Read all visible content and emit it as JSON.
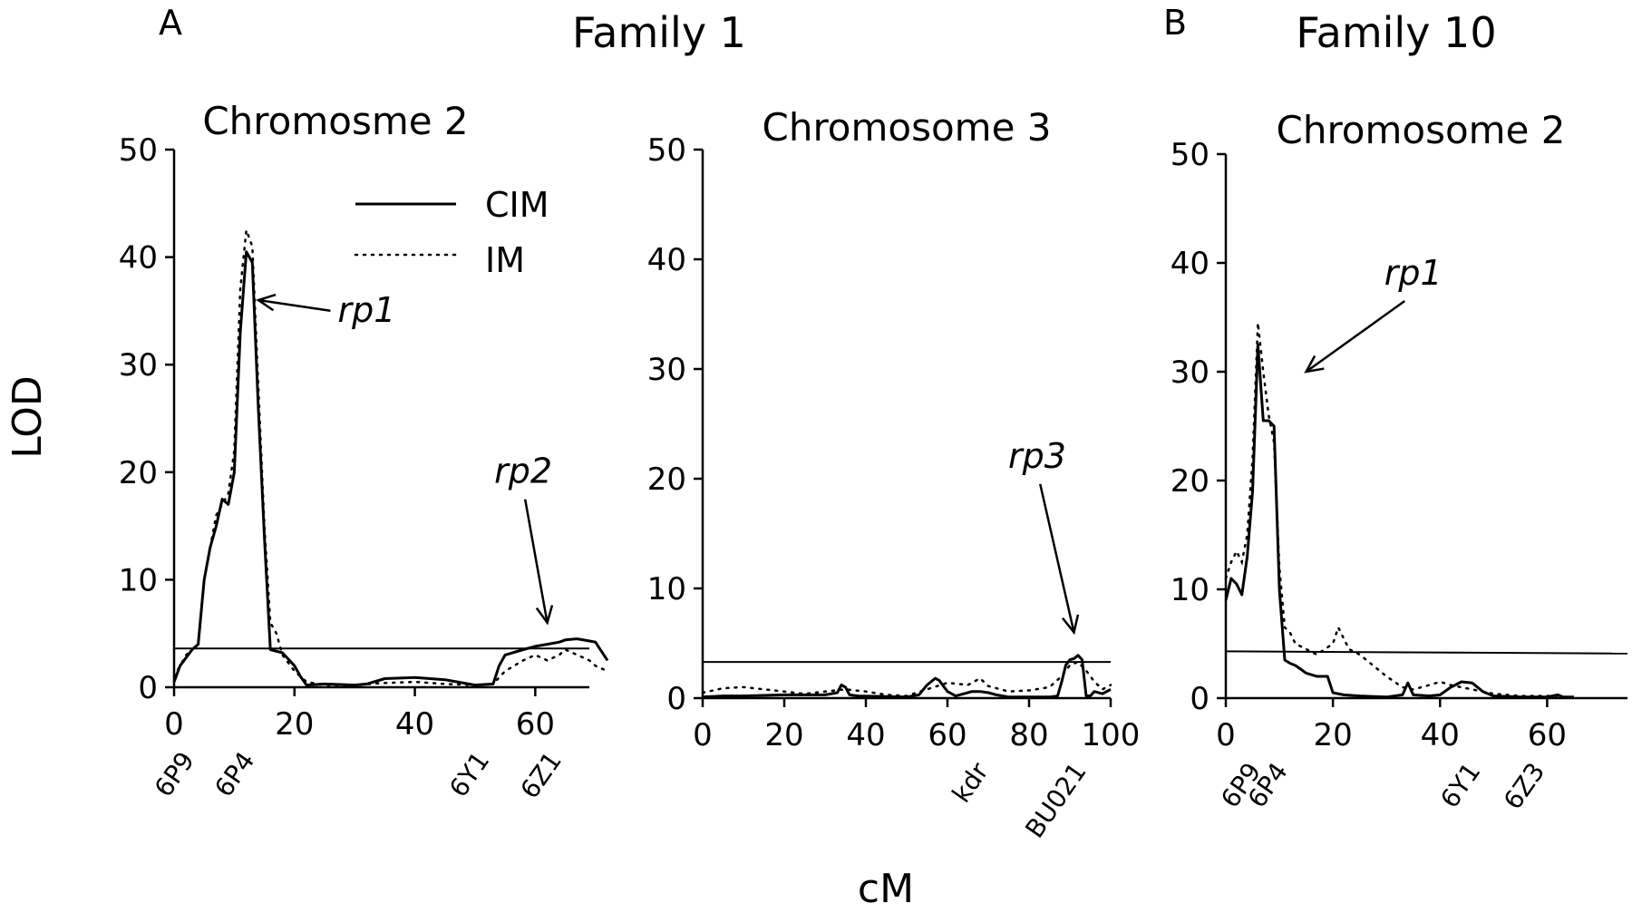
{
  "figure": {
    "panel_a_letter": "A",
    "panel_b_letter": "B",
    "family_a_title": "Family 1",
    "family_b_title": "Family 10",
    "ylabel": "LOD",
    "xlabel": "cM"
  },
  "legend": {
    "cim_label": "CIM",
    "im_label": "IM"
  },
  "chart_data": [
    {
      "type": "line",
      "title": "Chromosme 2",
      "ylim": [
        0,
        50
      ],
      "yticks": [
        0,
        10,
        20,
        30,
        40,
        50
      ],
      "xlim": [
        0,
        72
      ],
      "xticks": [
        0,
        20,
        40,
        60
      ],
      "threshold": 3.6,
      "markers": [
        {
          "name": "6P9",
          "x": 2
        },
        {
          "name": "6P4",
          "x": 12
        },
        {
          "name": "6Y1",
          "x": 51
        },
        {
          "name": "6Z1",
          "x": 63
        }
      ],
      "annotations": [
        {
          "text": "rp1",
          "x": 32,
          "y": 34,
          "arrow_to_x": 14,
          "arrow_to_y": 36
        },
        {
          "text": "rp2",
          "x": 58,
          "y": 19,
          "arrow_to_x": 62,
          "arrow_to_y": 6
        }
      ],
      "series": [
        {
          "name": "CIM",
          "x": [
            0,
            1,
            3,
            4,
            5,
            6,
            7,
            8,
            9,
            10,
            11,
            12,
            13,
            14,
            15,
            16,
            18,
            20,
            21,
            22,
            25,
            30,
            32,
            35,
            40,
            45,
            50,
            53,
            54,
            55,
            58,
            60,
            62,
            64,
            65,
            67,
            69,
            70,
            72
          ],
          "y": [
            0.5,
            2,
            3.5,
            4,
            10,
            13,
            15,
            17.5,
            17,
            20,
            33,
            40.5,
            39.5,
            26,
            14,
            3.5,
            3.2,
            2,
            1,
            0.2,
            0.3,
            0.2,
            0.3,
            0.8,
            0.9,
            0.7,
            0.2,
            0.3,
            2,
            3,
            3.5,
            3.8,
            4,
            4.2,
            4.4,
            4.5,
            4.3,
            4.2,
            2.5
          ]
        },
        {
          "name": "IM",
          "x": [
            0,
            2,
            4,
            5,
            7,
            9,
            10,
            11,
            12,
            13,
            14,
            15,
            16,
            17,
            18,
            20,
            22,
            25,
            30,
            35,
            40,
            45,
            50,
            53,
            55,
            58,
            60,
            62,
            64,
            65,
            67,
            69,
            70,
            72
          ],
          "y": [
            1,
            3,
            4,
            10,
            16,
            18,
            22,
            37,
            42.5,
            41,
            28,
            15,
            6,
            5,
            3,
            1.5,
            0.5,
            0.2,
            0.2,
            0.4,
            0.5,
            0.3,
            0.2,
            0.3,
            1.5,
            2.5,
            3,
            2.5,
            3,
            3.5,
            3,
            2.5,
            2,
            1.5
          ]
        }
      ]
    },
    {
      "type": "line",
      "title": "Chromosome 3",
      "ylim": [
        0,
        50
      ],
      "yticks": [
        0,
        10,
        20,
        30,
        40,
        50
      ],
      "xlim": [
        0,
        100
      ],
      "xticks": [
        0,
        20,
        40,
        60,
        80,
        100
      ],
      "threshold": 3.3,
      "markers": [
        {
          "name": "kdr",
          "x": 68
        },
        {
          "name": "BU021",
          "x": 92
        }
      ],
      "annotations": [
        {
          "text": "rp3",
          "x": 82,
          "y": 21,
          "arrow_to_x": 91,
          "arrow_to_y": 6
        }
      ],
      "series": [
        {
          "name": "CIM",
          "x": [
            0,
            5,
            10,
            20,
            30,
            33,
            34,
            35,
            36,
            38,
            50,
            53,
            55,
            57,
            58,
            60,
            62,
            64,
            66,
            68,
            70,
            72,
            75,
            80,
            85,
            87,
            88,
            89,
            90,
            91,
            92,
            93,
            94,
            95,
            96,
            98,
            100
          ],
          "y": [
            0.1,
            0.2,
            0.2,
            0.3,
            0.3,
            0.5,
            1.2,
            1.0,
            0.3,
            0.2,
            0.1,
            0.3,
            1.2,
            1.8,
            1.6,
            0.6,
            0.2,
            0.4,
            0.6,
            0.6,
            0.5,
            0.3,
            0.1,
            0.1,
            0.1,
            0.2,
            1.5,
            3.0,
            3.5,
            3.6,
            3.9,
            3.5,
            0.2,
            0.2,
            0.6,
            0.4,
            0.8
          ]
        },
        {
          "name": "IM",
          "x": [
            0,
            5,
            10,
            15,
            20,
            25,
            30,
            35,
            40,
            45,
            50,
            55,
            60,
            65,
            68,
            70,
            75,
            80,
            85,
            88,
            90,
            92,
            94,
            96,
            98,
            100
          ],
          "y": [
            0.5,
            0.9,
            1.0,
            0.8,
            0.6,
            0.4,
            0.6,
            0.8,
            0.6,
            0.3,
            0.2,
            0.8,
            1.4,
            1.2,
            1.8,
            1.1,
            0.6,
            0.7,
            1.0,
            2.0,
            3.0,
            3.3,
            2.5,
            1.5,
            0.8,
            1.2
          ]
        }
      ]
    },
    {
      "type": "line",
      "title": "Chromosome 2",
      "ylim": [
        0,
        50
      ],
      "yticks": [
        0,
        10,
        20,
        30,
        40,
        50
      ],
      "xlim": [
        0,
        75
      ],
      "xticks": [
        0,
        20,
        40,
        60
      ],
      "threshold": 4.3,
      "threshold_end": 4.1,
      "markers": [
        {
          "name": "6P9",
          "x": 5
        },
        {
          "name": "6P4",
          "x": 10
        },
        {
          "name": "6Y1",
          "x": 46
        },
        {
          "name": "6Z3",
          "x": 58
        }
      ],
      "annotations": [
        {
          "text": "rp1",
          "x": 35,
          "y": 38,
          "arrow_to_x": 15,
          "arrow_to_y": 30
        }
      ],
      "series": [
        {
          "name": "CIM",
          "x": [
            0,
            1,
            2,
            3,
            4,
            5,
            6,
            7,
            8,
            9,
            10,
            11,
            12,
            13,
            15,
            17,
            19,
            20,
            22,
            25,
            30,
            33,
            34,
            35,
            38,
            40,
            42,
            44,
            46,
            48,
            50,
            55,
            60,
            62,
            63,
            65
          ],
          "y": [
            9,
            11,
            10.5,
            9.5,
            13,
            19,
            32.5,
            25.5,
            25.5,
            25,
            10,
            3.5,
            3.2,
            3,
            2.3,
            2,
            2,
            0.5,
            0.3,
            0.2,
            0.1,
            0.3,
            1.4,
            0.3,
            0.2,
            0.3,
            1.0,
            1.5,
            1.4,
            0.6,
            0.2,
            0.1,
            0.1,
            0.3,
            0.1,
            0.1
          ]
        },
        {
          "name": "IM",
          "x": [
            0,
            1,
            2,
            3,
            4,
            5,
            6,
            7,
            8,
            9,
            10,
            11,
            12,
            13,
            15,
            17,
            20,
            21,
            22,
            23,
            25,
            30,
            33,
            35,
            38,
            40,
            42,
            44,
            46,
            48,
            50,
            55,
            60,
            62
          ],
          "y": [
            11,
            12.5,
            13.5,
            12.5,
            15,
            22,
            34.5,
            30,
            26,
            23.5,
            12,
            6.5,
            6,
            5,
            4.5,
            4,
            5,
            6.5,
            5.5,
            4.5,
            4,
            2,
            1,
            0.8,
            1.2,
            1.5,
            1.2,
            1,
            0.8,
            0.6,
            0.4,
            0.2,
            0.2,
            0.2
          ]
        }
      ]
    }
  ]
}
